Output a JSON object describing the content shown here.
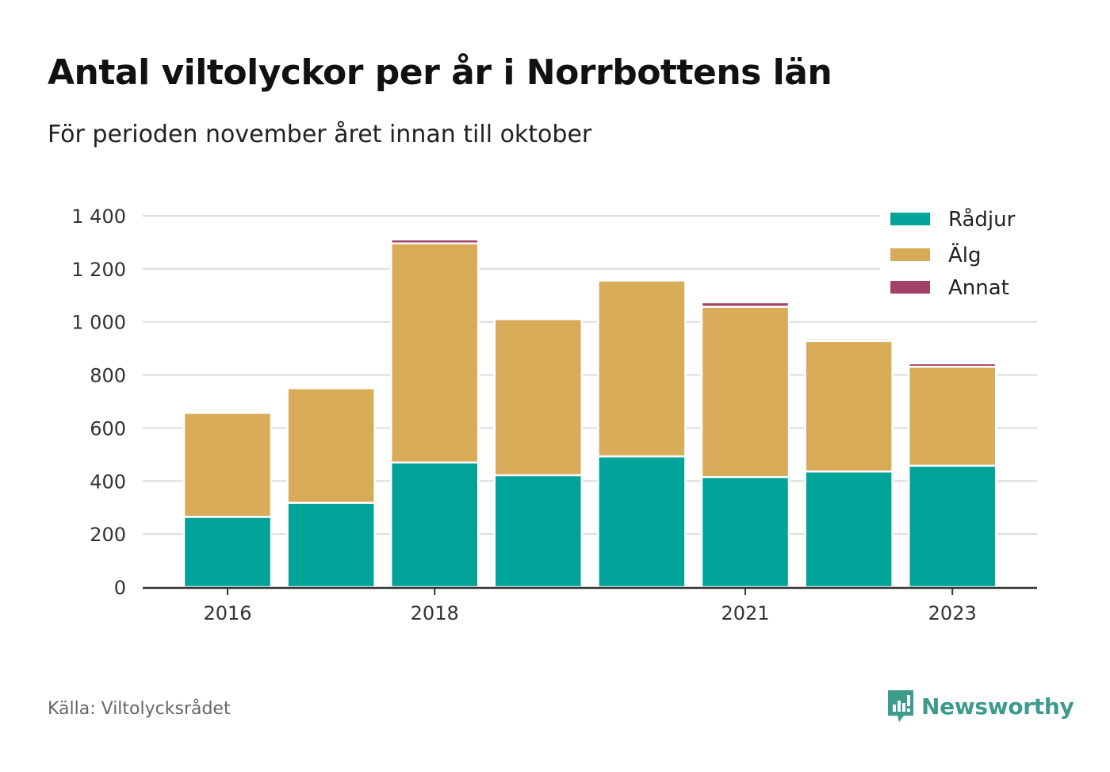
{
  "title": "Antal viltolyckor per år i Norrbottens län",
  "subtitle": "För perioden november året innan till oktober",
  "source": "Källa: Viltolycksrådet",
  "brand": {
    "name": "Newsworthy",
    "icon": "newsworthy-logo-icon",
    "color": "#3d9b8e"
  },
  "chart_data": {
    "type": "bar",
    "stacked": true,
    "categories": [
      "2016",
      "2017",
      "2018",
      "2019",
      "2020",
      "2021",
      "2022",
      "2023"
    ],
    "x_tick_labels": [
      "2016",
      "",
      "2018",
      "",
      "",
      "2021",
      "",
      "2023"
    ],
    "y_ticks": [
      0,
      200,
      400,
      600,
      800,
      1000,
      1200,
      1400
    ],
    "y_tick_labels": [
      "0",
      "200",
      "400",
      "600",
      "800",
      "1 000",
      "1 200",
      "1 400"
    ],
    "ylim": [
      0,
      1400
    ],
    "grid": true,
    "legend_position": "top-right",
    "series": [
      {
        "name": "Rådjur",
        "color": "#00a398",
        "values": [
          265,
          318,
          470,
          422,
          493,
          415,
          436,
          458
        ]
      },
      {
        "name": "Älg",
        "color": "#d8ab59",
        "values": [
          392,
          432,
          826,
          589,
          663,
          642,
          492,
          373
        ]
      },
      {
        "name": "Annat",
        "color": "#a34266",
        "values": [
          0,
          0,
          15,
          5,
          0,
          17,
          8,
          13
        ]
      }
    ]
  }
}
